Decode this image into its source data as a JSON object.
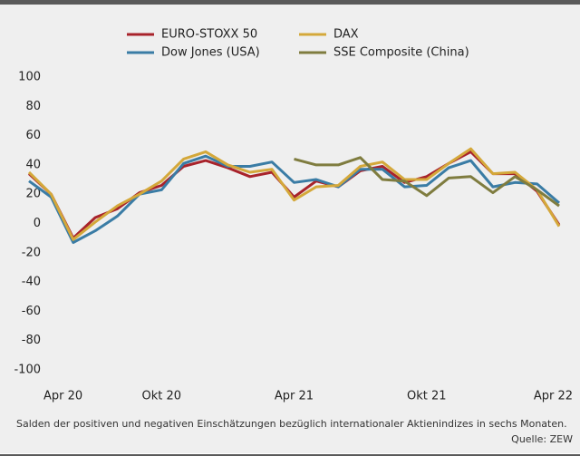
{
  "chart_data": {
    "type": "line",
    "categories": [
      "Apr 20",
      null,
      null,
      null,
      null,
      null,
      "Okt 20",
      null,
      null,
      null,
      null,
      null,
      "Apr 21",
      null,
      null,
      null,
      null,
      null,
      "Okt 21",
      null,
      null,
      null,
      null,
      null,
      "Apr 22"
    ],
    "series": [
      {
        "name": "EURO-STOXX 50",
        "color": "#a8232b",
        "values": [
          34,
          20,
          -10,
          4,
          10,
          21,
          26,
          39,
          43,
          38,
          32,
          35,
          18,
          29,
          25,
          36,
          39,
          28,
          32,
          41,
          49,
          34,
          34,
          22,
          -1
        ]
      },
      {
        "name": "Dow Jones (USA)",
        "color": "#3a7ca5",
        "values": [
          29,
          18,
          -13,
          -5,
          5,
          20,
          23,
          41,
          46,
          39,
          39,
          42,
          28,
          30,
          25,
          37,
          37,
          25,
          26,
          38,
          43,
          25,
          28,
          27,
          14
        ]
      },
      {
        "name": "DAX",
        "color": "#d4a83a",
        "values": [
          35,
          20,
          -11,
          1,
          12,
          20,
          29,
          44,
          49,
          40,
          35,
          37,
          16,
          25,
          26,
          39,
          42,
          30,
          30,
          41,
          51,
          34,
          35,
          23,
          -2
        ]
      },
      {
        "name": "SSE Composite (China)",
        "color": "#7f7c3f",
        "values": [
          null,
          null,
          null,
          null,
          null,
          null,
          null,
          null,
          null,
          null,
          null,
          null,
          44,
          40,
          40,
          45,
          30,
          29,
          19,
          31,
          32,
          21,
          32,
          23,
          12
        ]
      }
    ],
    "ylim": [
      -100,
      100
    ],
    "yticks": [
      100,
      80,
      60,
      40,
      20,
      0,
      -20,
      -40,
      -60,
      -80,
      -100
    ],
    "note": "Salden der positiven und negativen Einschätzungen bezüglich internationaler Aktienindizes in sechs Monaten.",
    "source": "Quelle: ZEW"
  }
}
